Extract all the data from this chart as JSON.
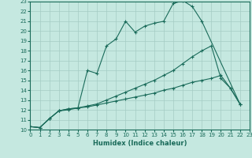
{
  "xlabel": "Humidex (Indice chaleur)",
  "bg_color": "#c5e8e0",
  "line_color": "#1a6b5a",
  "grid_color": "#a5ccc4",
  "xlim": [
    0,
    23
  ],
  "ylim": [
    10,
    23
  ],
  "xticks": [
    0,
    1,
    2,
    3,
    4,
    5,
    6,
    7,
    8,
    9,
    10,
    11,
    12,
    13,
    14,
    15,
    16,
    17,
    18,
    19,
    20,
    21,
    22,
    23
  ],
  "yticks": [
    10,
    11,
    12,
    13,
    14,
    15,
    16,
    17,
    18,
    19,
    20,
    21,
    22,
    23
  ],
  "line1_x": [
    0,
    1,
    2,
    3,
    4,
    5,
    6,
    7,
    8,
    9,
    10,
    11,
    12,
    13,
    14,
    15,
    16,
    17,
    18,
    22
  ],
  "line1_y": [
    10.3,
    10.2,
    11.1,
    11.9,
    12.0,
    12.2,
    16.0,
    15.7,
    18.5,
    19.2,
    21.0,
    19.9,
    20.5,
    20.8,
    21.0,
    22.8,
    23.1,
    22.5,
    21.0,
    12.6
  ],
  "line2_x": [
    0,
    1,
    2,
    3,
    4,
    5,
    6,
    7,
    8,
    9,
    10,
    11,
    12,
    13,
    14,
    15,
    16,
    17,
    18,
    19,
    20,
    21,
    22
  ],
  "line2_y": [
    10.3,
    10.2,
    11.1,
    11.9,
    12.1,
    12.2,
    12.4,
    12.6,
    13.0,
    13.4,
    13.8,
    14.2,
    14.6,
    15.0,
    15.5,
    16.0,
    16.7,
    17.4,
    18.0,
    18.5,
    15.2,
    14.2,
    12.6
  ],
  "line3_x": [
    0,
    1,
    2,
    3,
    4,
    5,
    6,
    7,
    8,
    9,
    10,
    11,
    12,
    13,
    14,
    15,
    16,
    17,
    18,
    19,
    20,
    21,
    22
  ],
  "line3_y": [
    10.3,
    10.2,
    11.1,
    11.9,
    12.1,
    12.2,
    12.3,
    12.5,
    12.7,
    12.9,
    13.1,
    13.3,
    13.5,
    13.7,
    14.0,
    14.2,
    14.5,
    14.8,
    15.0,
    15.2,
    15.5,
    14.2,
    12.6
  ]
}
